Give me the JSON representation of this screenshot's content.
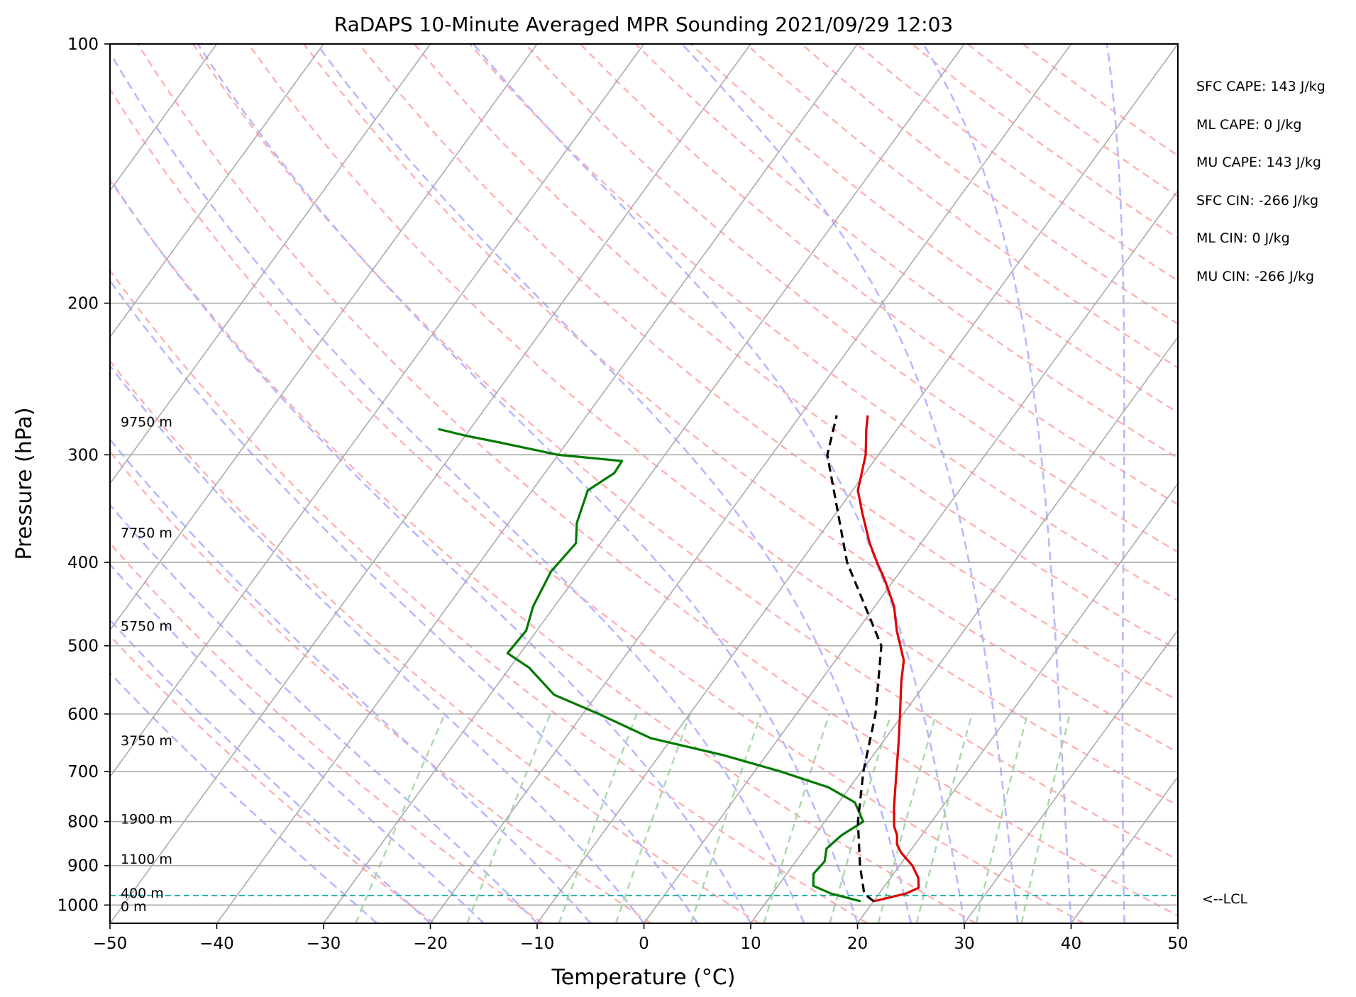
{
  "chart_data": {
    "type": "line",
    "chart_kind": "skew-T log-P",
    "title": "RaDAPS 10-Minute Averaged MPR Sounding 2021/09/29 12:03",
    "xlabel": "Temperature (°C)",
    "ylabel": "Pressure (hPa)",
    "xlim": [
      -50,
      50
    ],
    "ylim": [
      1050,
      100
    ],
    "y_scale": "log",
    "x_ticks": [
      "−50",
      "−40",
      "−30",
      "−20",
      "−10",
      "0",
      "10",
      "20",
      "30",
      "40",
      "50"
    ],
    "x_tick_values": [
      -50,
      -40,
      -30,
      -20,
      -10,
      0,
      10,
      20,
      30,
      40,
      50
    ],
    "y_ticks": [
      "100",
      "200",
      "300",
      "400",
      "500",
      "600",
      "700",
      "800",
      "900",
      "1000"
    ],
    "y_tick_values": [
      100,
      200,
      300,
      400,
      500,
      600,
      700,
      800,
      900,
      1000
    ],
    "grid": true,
    "series": [
      {
        "role": "temperature",
        "color": "#e00000",
        "points": [
          {
            "p": 990,
            "t": 20.0
          },
          {
            "p": 970,
            "t": 22.5
          },
          {
            "p": 955,
            "t": 23.3
          },
          {
            "p": 930,
            "t": 22.6
          },
          {
            "p": 900,
            "t": 21.2
          },
          {
            "p": 870,
            "t": 19.3
          },
          {
            "p": 850,
            "t": 18.3
          },
          {
            "p": 830,
            "t": 17.7
          },
          {
            "p": 810,
            "t": 16.8
          },
          {
            "p": 770,
            "t": 15.5
          },
          {
            "p": 700,
            "t": 13.3
          },
          {
            "p": 650,
            "t": 11.6
          },
          {
            "p": 600,
            "t": 9.7
          },
          {
            "p": 550,
            "t": 7.6
          },
          {
            "p": 520,
            "t": 6.4
          },
          {
            "p": 480,
            "t": 3.7
          },
          {
            "p": 450,
            "t": 1.8
          },
          {
            "p": 420,
            "t": -0.8
          },
          {
            "p": 400,
            "t": -2.8
          },
          {
            "p": 380,
            "t": -4.8
          },
          {
            "p": 350,
            "t": -7.6
          },
          {
            "p": 330,
            "t": -9.5
          },
          {
            "p": 300,
            "t": -11.2
          },
          {
            "p": 280,
            "t": -12.9
          },
          {
            "p": 270,
            "t": -13.7
          }
        ]
      },
      {
        "role": "dewpoint",
        "color": "#007a00",
        "points": [
          {
            "p": 990,
            "t": 18.8
          },
          {
            "p": 970,
            "t": 15.5
          },
          {
            "p": 950,
            "t": 13.3
          },
          {
            "p": 920,
            "t": 12.5
          },
          {
            "p": 890,
            "t": 12.7
          },
          {
            "p": 860,
            "t": 12.0
          },
          {
            "p": 830,
            "t": 12.5
          },
          {
            "p": 800,
            "t": 13.6
          },
          {
            "p": 760,
            "t": 11.5
          },
          {
            "p": 730,
            "t": 8.0
          },
          {
            "p": 700,
            "t": 2.5
          },
          {
            "p": 670,
            "t": -4.0
          },
          {
            "p": 640,
            "t": -12.0
          },
          {
            "p": 600,
            "t": -18.5
          },
          {
            "p": 570,
            "t": -24.0
          },
          {
            "p": 530,
            "t": -28.2
          },
          {
            "p": 510,
            "t": -31.2
          },
          {
            "p": 480,
            "t": -31.0
          },
          {
            "p": 450,
            "t": -32.0
          },
          {
            "p": 410,
            "t": -32.7
          },
          {
            "p": 380,
            "t": -32.3
          },
          {
            "p": 360,
            "t": -33.6
          },
          {
            "p": 330,
            "t": -34.8
          },
          {
            "p": 315,
            "t": -33.5
          },
          {
            "p": 305,
            "t": -33.6
          },
          {
            "p": 300,
            "t": -40.0
          },
          {
            "p": 290,
            "t": -46.5
          },
          {
            "p": 285,
            "t": -50.0
          },
          {
            "p": 280,
            "t": -53.0
          }
        ]
      },
      {
        "role": "parcel",
        "color": "#000000",
        "dashed": true,
        "points": [
          {
            "p": 990,
            "t": 20.0
          },
          {
            "p": 970,
            "t": 18.6
          },
          {
            "p": 900,
            "t": 16.3
          },
          {
            "p": 800,
            "t": 13.1
          },
          {
            "p": 700,
            "t": 10.2
          },
          {
            "p": 600,
            "t": 7.4
          },
          {
            "p": 500,
            "t": 3.3
          },
          {
            "p": 400,
            "t": -5.6
          },
          {
            "p": 300,
            "t": -14.8
          },
          {
            "p": 270,
            "t": -16.6
          }
        ]
      }
    ],
    "background_lines": {
      "isotherms": true,
      "dry_adiabats": true,
      "moist_adiabats": true,
      "mixing_ratio_lines": true,
      "isotherm_color": "#aaaaaa",
      "dry_adiabat_color": "#ffb0b0",
      "moist_adiabat_color": "#b8b8ff",
      "mixing_ratio_color": "#a8d8a8"
    },
    "lcl": {
      "p": 975,
      "label": "<--LCL",
      "color": "#20b2aa"
    },
    "height_labels": [
      {
        "p": 275,
        "text": "9750 m"
      },
      {
        "p": 370,
        "text": "7750 m"
      },
      {
        "p": 475,
        "text": "5750 m"
      },
      {
        "p": 645,
        "text": "3750 m"
      },
      {
        "p": 795,
        "text": "1900 m"
      },
      {
        "p": 885,
        "text": "1100 m"
      },
      {
        "p": 970,
        "text": "400 m"
      },
      {
        "p": 1005,
        "text": "0 m"
      }
    ]
  },
  "stats": [
    {
      "text": "SFC CAPE: 143 J/kg"
    },
    {
      "text": "ML CAPE: 0 J/kg"
    },
    {
      "text": "MU CAPE: 143 J/kg"
    },
    {
      "text": "SFC CIN: -266 J/kg"
    },
    {
      "text": "ML CIN: 0 J/kg"
    },
    {
      "text": "MU CIN: -266 J/kg"
    }
  ]
}
